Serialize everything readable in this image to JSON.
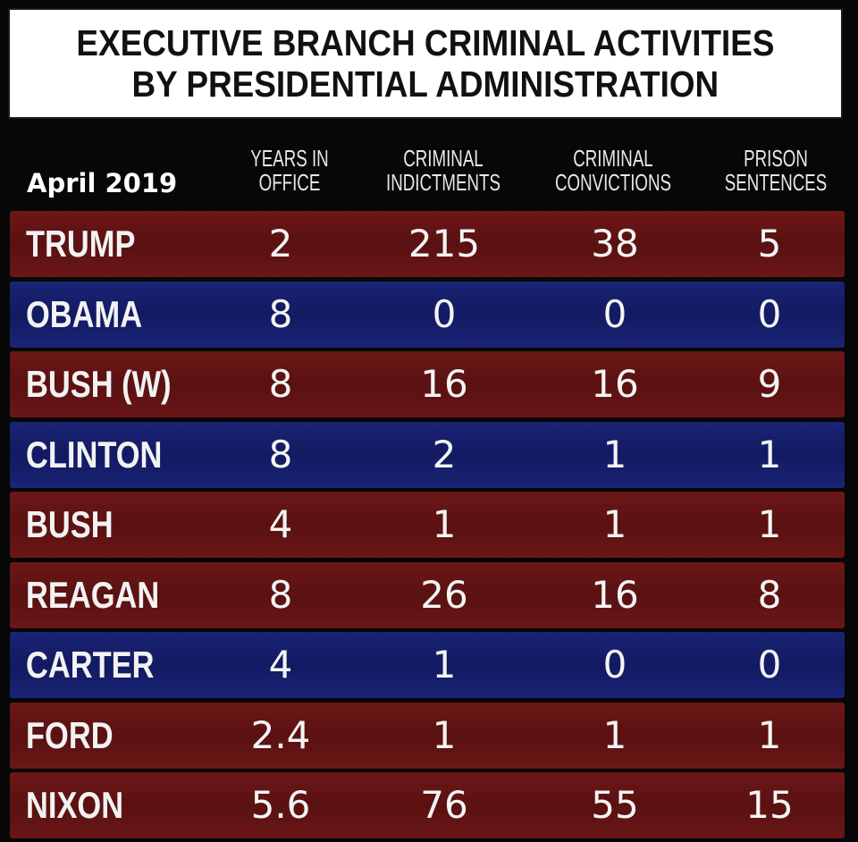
{
  "title": {
    "line1": "EXECUTIVE BRANCH CRIMINAL ACTIVITIES",
    "line2": "BY PRESIDENTIAL ADMINISTRATION"
  },
  "date_label": "April 2019",
  "columns": [
    {
      "line1": "YEARS IN",
      "line2": "OFFICE"
    },
    {
      "line1": "CRIMINAL",
      "line2": "INDICTMENTS"
    },
    {
      "line1": "CRIMINAL",
      "line2": "CONVICTIONS"
    },
    {
      "line1": "PRISON",
      "line2": "SENTENCES"
    }
  ],
  "colors": {
    "red_row": "#5f1313",
    "blue_row": "#151d68",
    "background": "#070707"
  },
  "chart_data": {
    "type": "table",
    "title": "EXECUTIVE BRANCH CRIMINAL ACTIVITIES BY PRESIDENTIAL ADMINISTRATION",
    "date": "April 2019",
    "headers": [
      "YEARS IN OFFICE",
      "CRIMINAL INDICTMENTS",
      "CRIMINAL CONVICTIONS",
      "PRISON SENTENCES"
    ],
    "rows": [
      {
        "name": "TRUMP",
        "color": "red",
        "values": [
          "2",
          "215",
          "38",
          "5"
        ]
      },
      {
        "name": "OBAMA",
        "color": "blue",
        "values": [
          "8",
          "0",
          "0",
          "0"
        ]
      },
      {
        "name": "BUSH (W)",
        "color": "red",
        "values": [
          "8",
          "16",
          "16",
          "9"
        ]
      },
      {
        "name": "CLINTON",
        "color": "blue",
        "values": [
          "8",
          "2",
          "1",
          "1"
        ]
      },
      {
        "name": "BUSH",
        "color": "red",
        "values": [
          "4",
          "1",
          "1",
          "1"
        ]
      },
      {
        "name": "REAGAN",
        "color": "red",
        "values": [
          "8",
          "26",
          "16",
          "8"
        ]
      },
      {
        "name": "CARTER",
        "color": "blue",
        "values": [
          "4",
          "1",
          "0",
          "0"
        ]
      },
      {
        "name": "FORD",
        "color": "red",
        "values": [
          "2.4",
          "1",
          "1",
          "1"
        ]
      },
      {
        "name": "NIXON",
        "color": "red",
        "values": [
          "5.6",
          "76",
          "55",
          "15"
        ]
      }
    ]
  }
}
